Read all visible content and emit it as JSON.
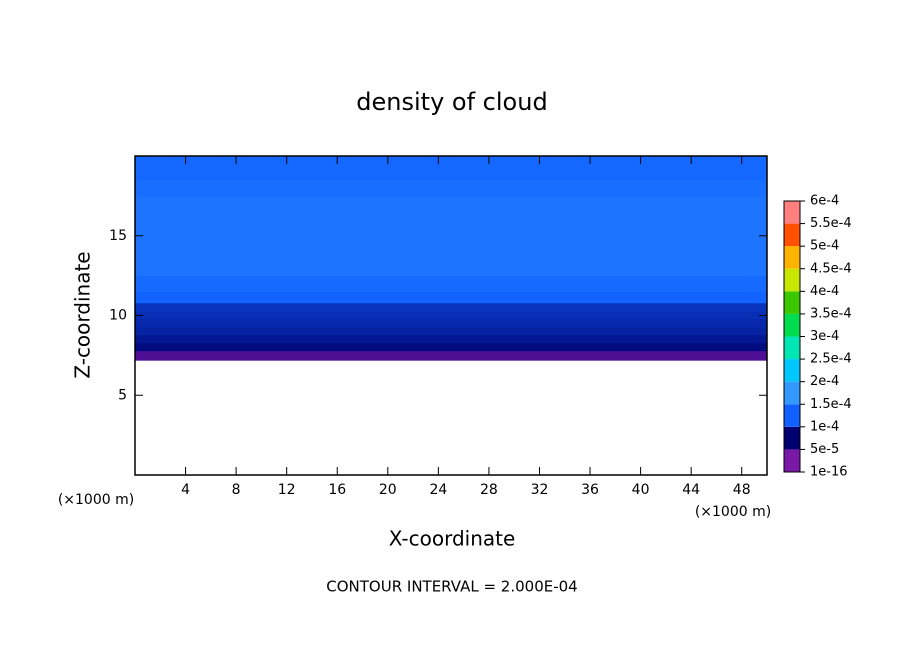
{
  "chart_data": {
    "type": "contour",
    "title": "density of cloud",
    "x_label": "X-coordinate",
    "y_label": "Z-coordinate",
    "x_unit": "(×1000 m)",
    "note": "CONTOUR INTERVAL = 2.000E-04",
    "xlim": [
      0,
      50
    ],
    "ylim": [
      0,
      20
    ],
    "xticks": [
      4,
      8,
      12,
      16,
      20,
      24,
      28,
      32,
      36,
      40,
      44,
      48
    ],
    "yticks": [
      5,
      10,
      15
    ],
    "field": {
      "z": [
        7.2,
        7.8,
        8.3,
        8.8,
        9.3,
        9.8,
        10.3,
        10.8,
        11.5,
        12.5,
        17.5,
        18.5,
        20
      ],
      "values": [
        3e-05,
        6e-05,
        7e-05,
        8e-05,
        8.5e-05,
        9e-05,
        9.5e-05,
        0.000105,
        0.000115,
        0.00013,
        0.00012,
        0.00011
      ]
    },
    "colorbar_ticks": [
      {
        "value": 1e-16,
        "label": "1e-16"
      },
      {
        "value": 5e-05,
        "label": "5e-5"
      },
      {
        "value": 0.0001,
        "label": "1e-4"
      },
      {
        "value": 0.00015,
        "label": "1.5e-4"
      },
      {
        "value": 0.0002,
        "label": "2e-4"
      },
      {
        "value": 0.00025,
        "label": "2.5e-4"
      },
      {
        "value": 0.0003,
        "label": "3e-4"
      },
      {
        "value": 0.00035,
        "label": "3.5e-4"
      },
      {
        "value": 0.0004,
        "label": "4e-4"
      },
      {
        "value": 0.00045,
        "label": "4.5e-4"
      },
      {
        "value": 0.0005,
        "label": "5e-4"
      },
      {
        "value": 0.00055,
        "label": "5.5e-4"
      },
      {
        "value": 0.0006,
        "label": "6e-4"
      }
    ],
    "colorbar_colors": [
      "#7a18a8",
      "#000070",
      "#1060ff",
      "#3399ff",
      "#00c8ff",
      "#00e6b4",
      "#00dc50",
      "#3cc800",
      "#c8e600",
      "#ffb400",
      "#ff5000",
      "#ff8080"
    ]
  }
}
